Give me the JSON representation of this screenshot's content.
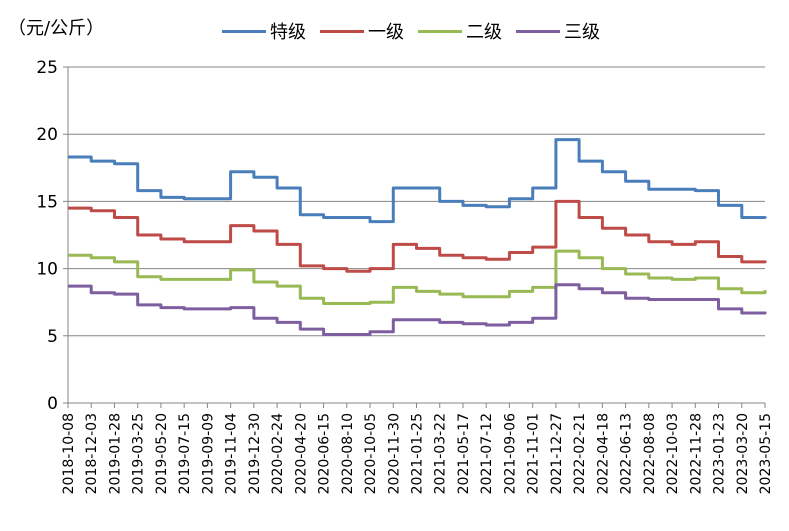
{
  "unit_label": "（元/公斤）",
  "colors": {
    "特级": "#4a7ebb",
    "一级": "#be4b48",
    "二级": "#98b954",
    "三级": "#7d5fa0"
  },
  "chart_data": {
    "type": "line",
    "title": "",
    "ylabel": "（元/公斤）",
    "ylim": [
      0,
      25
    ],
    "yticks": [
      0,
      5,
      10,
      15,
      20,
      25
    ],
    "grid": true,
    "legend_position": "top",
    "x_tick_labels": [
      "2018-10-08",
      "2018-12-03",
      "2019-01-28",
      "2019-03-25",
      "2019-05-20",
      "2019-07-15",
      "2019-09-09",
      "2019-11-04",
      "2019-12-30",
      "2020-02-24",
      "2020-04-20",
      "2020-06-15",
      "2020-08-10",
      "2020-10-05",
      "2020-11-30",
      "2021-01-25",
      "2021-03-22",
      "2021-05-17",
      "2021-07-12",
      "2021-09-06",
      "2021-11-01",
      "2021-12-27",
      "2022-02-21",
      "2022-04-18",
      "2022-06-13",
      "2022-08-08",
      "2022-10-03",
      "2022-11-28",
      "2023-01-23",
      "2023-03-20",
      "2023-05-15"
    ],
    "x": [
      "2018-10-08",
      "2018-12-03",
      "2019-01-28",
      "2019-03-25",
      "2019-05-20",
      "2019-07-15",
      "2019-09-09",
      "2019-11-04",
      "2019-12-30",
      "2020-02-24",
      "2020-04-20",
      "2020-06-15",
      "2020-08-10",
      "2020-10-05",
      "2020-11-30",
      "2021-01-25",
      "2021-03-22",
      "2021-05-17",
      "2021-07-12",
      "2021-09-06",
      "2021-11-01",
      "2021-12-27",
      "2022-02-21",
      "2022-04-18",
      "2022-06-13",
      "2022-08-08",
      "2022-10-03",
      "2022-11-28",
      "2023-01-23",
      "2023-03-20",
      "2023-05-15"
    ],
    "series": [
      {
        "name": "特级",
        "values": [
          18.3,
          18.0,
          17.8,
          15.8,
          15.3,
          15.2,
          15.2,
          17.2,
          16.8,
          16.0,
          14.0,
          13.8,
          13.8,
          13.5,
          16.0,
          16.0,
          15.0,
          14.7,
          14.6,
          15.2,
          16.0,
          19.6,
          18.0,
          17.2,
          16.5,
          15.9,
          15.9,
          15.8,
          14.7,
          13.8,
          13.9
        ]
      },
      {
        "name": "一级",
        "values": [
          14.5,
          14.3,
          13.8,
          12.5,
          12.2,
          12.0,
          12.0,
          13.2,
          12.8,
          11.8,
          10.2,
          10.0,
          9.8,
          10.0,
          11.8,
          11.5,
          11.0,
          10.8,
          10.7,
          11.2,
          11.6,
          15.0,
          13.8,
          13.0,
          12.5,
          12.0,
          11.8,
          12.0,
          10.9,
          10.5,
          10.6
        ]
      },
      {
        "name": "二级",
        "values": [
          11.0,
          10.8,
          10.5,
          9.4,
          9.2,
          9.2,
          9.2,
          9.9,
          9.0,
          8.7,
          7.8,
          7.4,
          7.4,
          7.5,
          8.6,
          8.3,
          8.1,
          7.9,
          7.9,
          8.3,
          8.6,
          11.3,
          10.8,
          10.0,
          9.6,
          9.3,
          9.2,
          9.3,
          8.5,
          8.2,
          8.4
        ]
      },
      {
        "name": "三级",
        "values": [
          8.7,
          8.2,
          8.1,
          7.3,
          7.1,
          7.0,
          7.0,
          7.1,
          6.3,
          6.0,
          5.5,
          5.1,
          5.1,
          5.3,
          6.2,
          6.2,
          6.0,
          5.9,
          5.8,
          6.0,
          6.3,
          8.8,
          8.5,
          8.2,
          7.8,
          7.7,
          7.7,
          7.7,
          7.0,
          6.7,
          6.8
        ]
      }
    ]
  }
}
